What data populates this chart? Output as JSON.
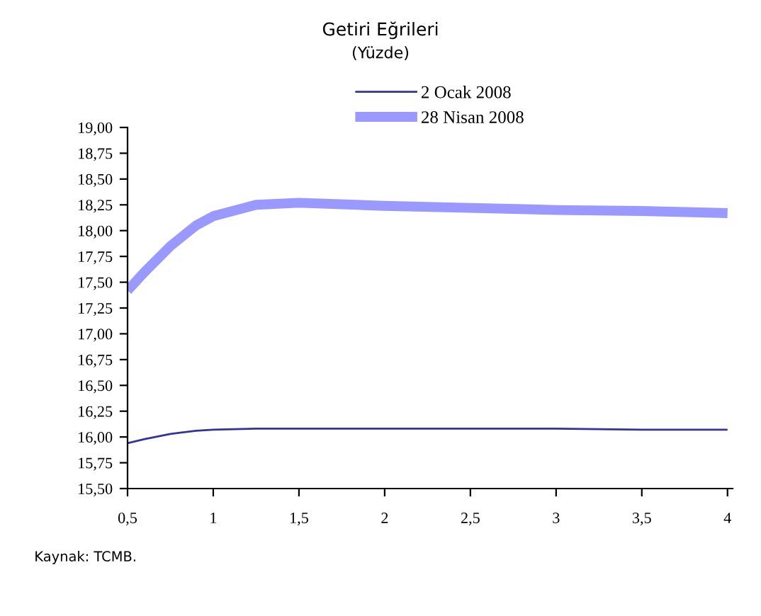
{
  "chart_data": {
    "type": "line",
    "title": "Getiri Eğrileri",
    "subtitle": "(Yüzde)",
    "x": [
      0.5,
      0.6,
      0.75,
      0.9,
      1,
      1.25,
      1.5,
      2,
      2.5,
      3,
      3.5,
      4
    ],
    "series": [
      {
        "name": "2 Ocak 2008",
        "color": "#333399",
        "values": [
          15.94,
          15.98,
          16.03,
          16.06,
          16.07,
          16.08,
          16.08,
          16.08,
          16.08,
          16.08,
          16.07,
          16.07
        ]
      },
      {
        "name": "28 Nisan 2008",
        "color": "#9999ff",
        "values": [
          17.42,
          17.6,
          17.85,
          18.05,
          18.14,
          18.25,
          18.27,
          18.24,
          18.22,
          18.2,
          18.19,
          18.17
        ]
      }
    ],
    "xlim": [
      0.5,
      4.03
    ],
    "xticks": [
      {
        "value": 0.5,
        "label": "0,5"
      },
      1,
      {
        "value": 1.5,
        "label": "1,5"
      },
      2,
      {
        "value": 2.5,
        "label": "2,5"
      },
      3,
      {
        "value": 3.5,
        "label": "3,5"
      },
      4
    ],
    "ylim": [
      15.5,
      19.0
    ],
    "yticks": [
      {
        "value": 15.5,
        "label": "15,50"
      },
      {
        "value": 15.75,
        "label": "15,75"
      },
      {
        "value": 16.0,
        "label": "16,00"
      },
      {
        "value": 16.25,
        "label": "16,25"
      },
      {
        "value": 16.5,
        "label": "16,50"
      },
      {
        "value": 16.75,
        "label": "16,75"
      },
      {
        "value": 17.0,
        "label": "17,00"
      },
      {
        "value": 17.25,
        "label": "17,25"
      },
      {
        "value": 17.5,
        "label": "17,50"
      },
      {
        "value": 17.75,
        "label": "17,75"
      },
      {
        "value": 18.0,
        "label": "18,00"
      },
      {
        "value": 18.25,
        "label": "18,25"
      },
      {
        "value": 18.5,
        "label": "18,50"
      },
      {
        "value": 18.75,
        "label": "18,75"
      },
      {
        "value": 19.0,
        "label": "19,00"
      }
    ],
    "grid": false,
    "legend": "top left",
    "marker": "none",
    "line_style": "solid",
    "annotations": [
      "Kaynak: TCMB."
    ]
  }
}
